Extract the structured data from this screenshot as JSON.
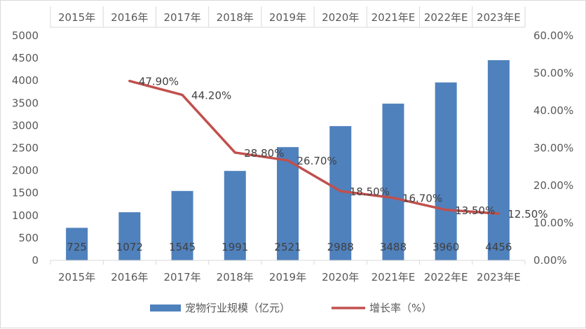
{
  "chart_data": {
    "type": "bar",
    "categories": [
      "2015年",
      "2016年",
      "2017年",
      "2018年",
      "2019年",
      "2020年",
      "2021年E",
      "2022年E",
      "2023年E"
    ],
    "series": [
      {
        "name": "宠物行业规模（亿元）",
        "type": "bar",
        "axis": "left",
        "color": "#4f81bd",
        "values": [
          725,
          1072,
          1545,
          1991,
          2521,
          2988,
          3488,
          3960,
          4456
        ],
        "labels": [
          "725",
          "1072",
          "1545",
          "1991",
          "2521",
          "2988",
          "3488",
          "3960",
          "4456"
        ]
      },
      {
        "name": "增长率（%）",
        "type": "line",
        "axis": "right",
        "color": "#c0504d",
        "values": [
          null,
          47.9,
          44.2,
          28.8,
          26.7,
          18.5,
          16.7,
          13.5,
          12.5
        ],
        "labels": [
          "",
          "47.90%",
          "44.20%",
          "28.80%",
          "26.70%",
          "18.50%",
          "16.70%",
          "13.50%",
          "12.50%"
        ]
      }
    ],
    "ylim": [
      0,
      5000
    ],
    "y_ticks": [
      "0",
      "500",
      "1000",
      "1500",
      "2000",
      "2500",
      "3000",
      "3500",
      "4000",
      "4500",
      "5000"
    ],
    "y2lim": [
      0,
      60
    ],
    "y2_ticks": [
      "0.00%",
      "10.00%",
      "20.00%",
      "30.00%",
      "40.00%",
      "50.00%",
      "60.00%"
    ],
    "top_categories": [
      "2015年",
      "2016年",
      "2017年",
      "2018年",
      "2019年",
      "2020年",
      "2021年E",
      "2022年E",
      "2023年E"
    ],
    "legend_position": "bottom",
    "grid": false
  }
}
